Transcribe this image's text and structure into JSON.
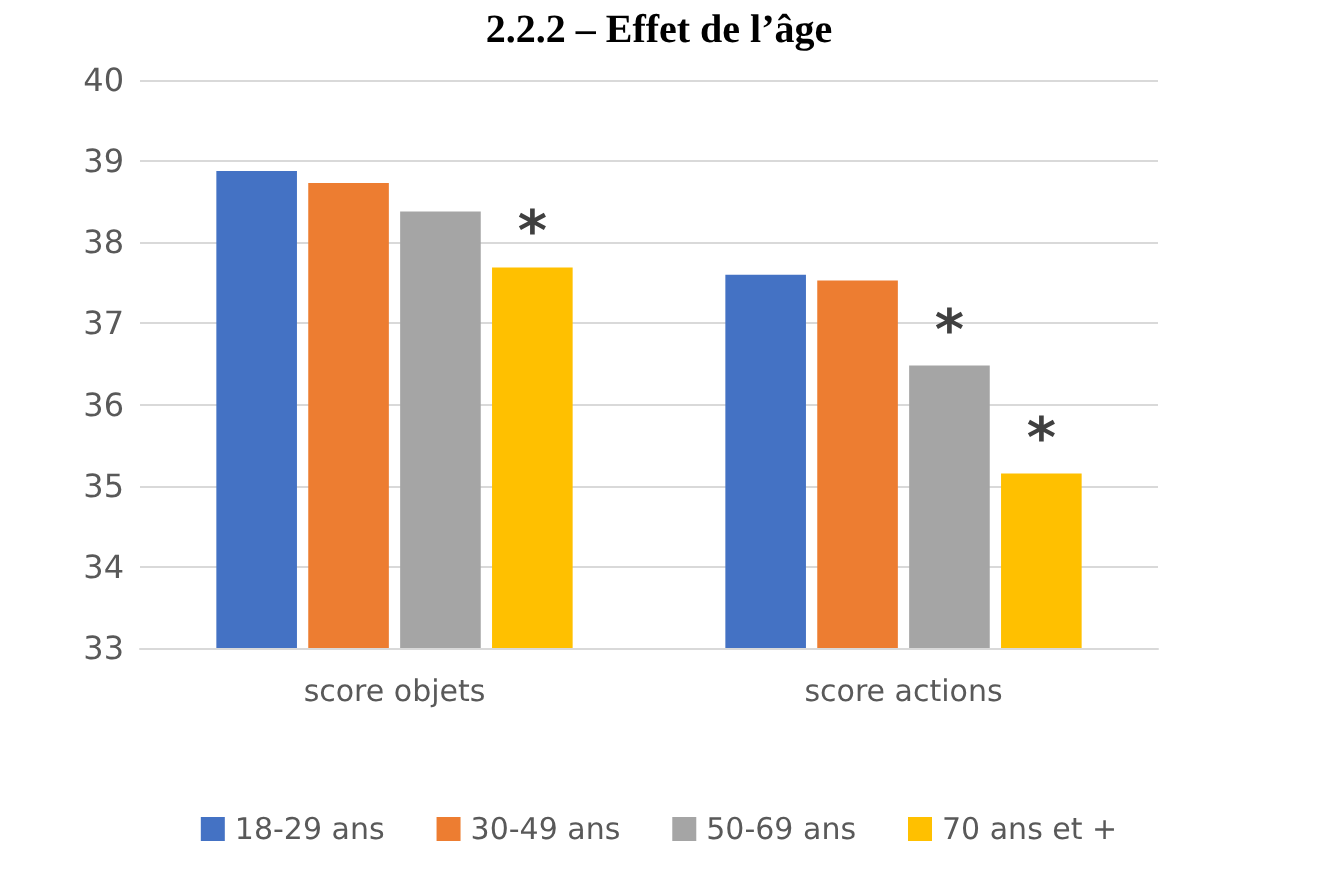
{
  "chart_data": {
    "type": "bar",
    "title": "2.2.2 – Effet de l’âge",
    "categories": [
      "score objets",
      "score actions"
    ],
    "series": [
      {
        "name": "18-29 ans",
        "color": "#4472c4",
        "values": [
          38.88,
          37.6
        ]
      },
      {
        "name": "30-49 ans",
        "color": "#ed7d31",
        "values": [
          38.73,
          37.53
        ]
      },
      {
        "name": "50-69 ans",
        "color": "#a5a5a5",
        "values": [
          38.38,
          36.48
        ],
        "value_labels": [
          null,
          "*"
        ]
      },
      {
        "name": "70 ans et +",
        "color": "#ffc000",
        "values": [
          37.69,
          35.15
        ],
        "value_labels": [
          "*",
          "*"
        ]
      }
    ],
    "ylim": [
      33,
      40
    ],
    "yticks": [
      33,
      34,
      35,
      36,
      37,
      38,
      39,
      40
    ],
    "grid": "y",
    "legend": "bottom"
  }
}
